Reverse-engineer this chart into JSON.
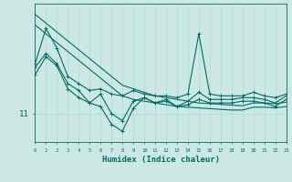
{
  "title": "",
  "xlabel": "Humidex (Indice chaleur)",
  "bg_color": "#cce8e4",
  "line_color": "#006b63",
  "grid_color": "#b0d8d0",
  "x_values": [
    0,
    1,
    2,
    3,
    4,
    5,
    6,
    7,
    8,
    9,
    10,
    11,
    12,
    13,
    14,
    15,
    16,
    17,
    18,
    19,
    20,
    21,
    22,
    23
  ],
  "line_trend1": [
    13.8,
    13.55,
    13.3,
    13.05,
    12.8,
    12.55,
    12.3,
    12.05,
    11.8,
    11.7,
    11.6,
    11.5,
    11.45,
    11.4,
    11.35,
    11.3,
    11.28,
    11.26,
    11.24,
    11.22,
    11.3,
    11.3,
    11.28,
    11.32
  ],
  "line_trend2": [
    13.5,
    13.25,
    13.0,
    12.75,
    12.5,
    12.25,
    12.0,
    11.75,
    11.5,
    11.4,
    11.35,
    11.3,
    11.25,
    11.2,
    11.18,
    11.16,
    11.14,
    11.12,
    11.1,
    11.1,
    11.18,
    11.18,
    11.16,
    11.2
  ],
  "line_jagged1": [
    12.4,
    13.4,
    12.85,
    12.05,
    11.85,
    11.65,
    11.7,
    11.55,
    11.5,
    11.65,
    11.55,
    11.5,
    11.5,
    11.45,
    11.55,
    13.25,
    11.55,
    11.5,
    11.5,
    11.5,
    11.6,
    11.5,
    11.45,
    11.55
  ],
  "line_jagged2": [
    12.3,
    12.7,
    12.4,
    11.85,
    11.65,
    11.3,
    11.55,
    11.0,
    10.8,
    11.35,
    11.45,
    11.3,
    11.4,
    11.2,
    11.35,
    11.6,
    11.4,
    11.4,
    11.4,
    11.45,
    11.45,
    11.4,
    11.3,
    11.5
  ],
  "line_very_jagged": [
    12.1,
    12.6,
    12.35,
    11.7,
    11.45,
    11.3,
    11.2,
    10.7,
    10.5,
    11.15,
    11.45,
    11.3,
    11.35,
    11.2,
    11.25,
    11.4,
    11.3,
    11.3,
    11.3,
    11.35,
    11.35,
    11.3,
    11.2,
    11.4
  ],
  "ytick_val": 11,
  "xlim": [
    0,
    23
  ],
  "ylim": [
    10.2,
    14.1
  ]
}
